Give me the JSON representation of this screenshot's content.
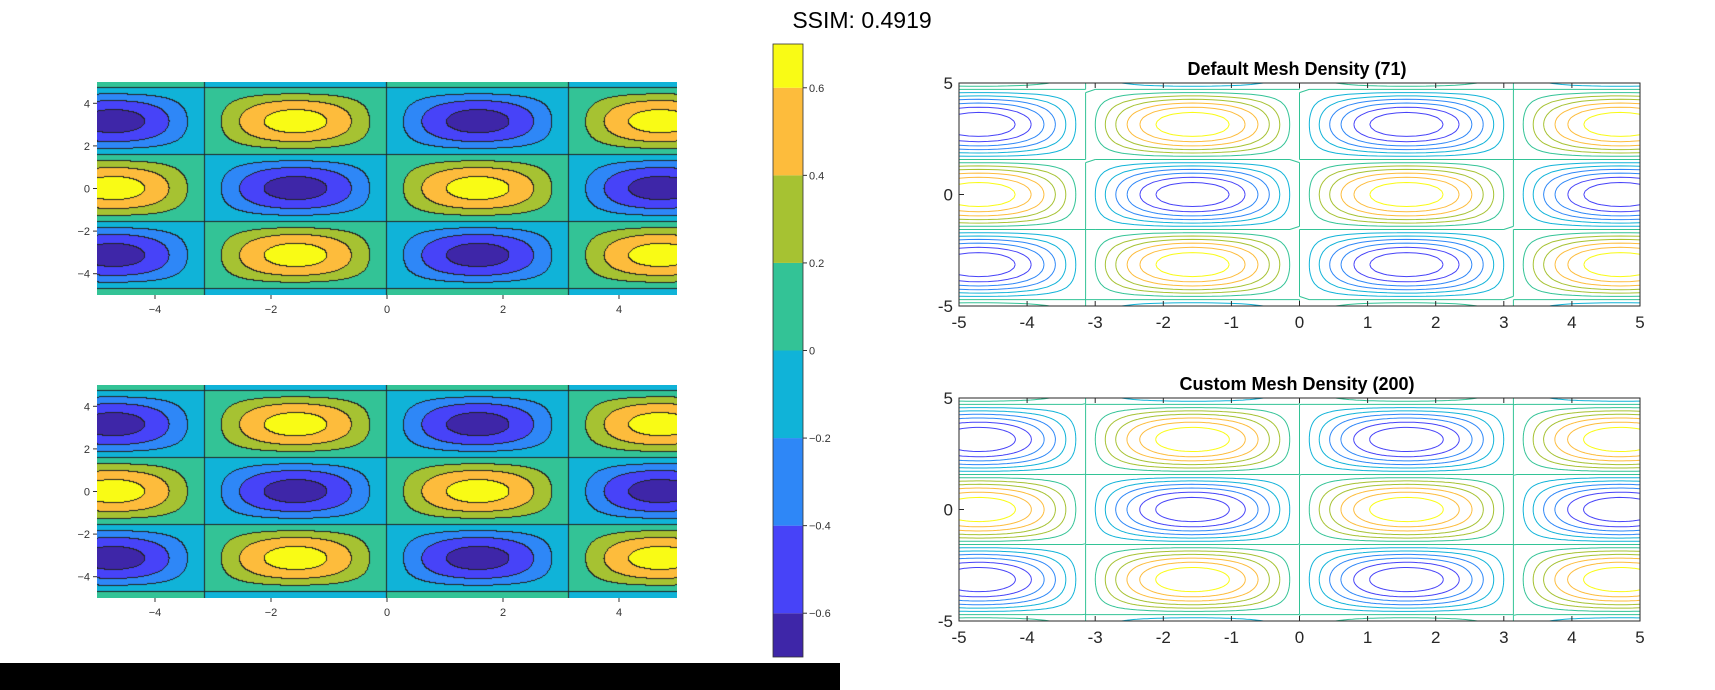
{
  "figure": {
    "suptitle": "SSIM: 0.4919"
  },
  "colormap": {
    "levels": [
      -0.7,
      -0.6,
      -0.4,
      -0.2,
      0.0,
      0.2,
      0.4,
      0.6,
      0.7
    ],
    "colors": [
      "#3e26a8",
      "#4743f8",
      "#2e87f7",
      "#10b3d8",
      "#33c396",
      "#a6c232",
      "#fdbc3c",
      "#f9fb15"
    ],
    "tick_values": [
      0.6,
      0.4,
      0.2,
      0,
      -0.2,
      -0.4,
      -0.6
    ],
    "tick_labels": [
      "0.6",
      "0.4",
      "0.2",
      "0",
      "−0.2",
      "−0.4",
      "−0.6"
    ]
  },
  "chart_data": [
    {
      "type": "contourf",
      "title": "",
      "function": "z = sin(x)·cos(y)·0.7 (approx.)",
      "xlim": [
        -5,
        5
      ],
      "ylim": [
        -5,
        5
      ],
      "xticks": [
        -4,
        -2,
        0,
        2,
        4
      ],
      "xtick_labels": [
        "−4",
        "−2",
        "0",
        "2",
        "4"
      ],
      "yticks": [
        4,
        2,
        0,
        -2,
        -4
      ],
      "ytick_labels": [
        "4",
        "2",
        "0",
        "−2",
        "−4"
      ],
      "levels": [
        -0.6,
        -0.4,
        -0.2,
        0.0,
        0.2,
        0.4,
        0.6
      ]
    },
    {
      "type": "contourf",
      "title": "",
      "xlim": [
        -5,
        5
      ],
      "ylim": [
        -5,
        5
      ],
      "xticks": [
        -4,
        -2,
        0,
        2,
        4
      ],
      "xtick_labels": [
        "−4",
        "−2",
        "0",
        "2",
        "4"
      ],
      "yticks": [
        4,
        2,
        0,
        -2,
        -4
      ],
      "ytick_labels": [
        "4",
        "2",
        "0",
        "−2",
        "−4"
      ],
      "levels": [
        -0.6,
        -0.4,
        -0.2,
        0.0,
        0.2,
        0.4,
        0.6
      ]
    },
    {
      "type": "contour",
      "title": "Default Mesh Density (71)",
      "mesh_points": 71,
      "xlim": [
        -5,
        5
      ],
      "ylim": [
        -5,
        5
      ],
      "xticks": [
        -5,
        -4,
        -3,
        -2,
        -1,
        0,
        1,
        2,
        3,
        4,
        5
      ],
      "xtick_labels": [
        "-5",
        "-4",
        "-3",
        "-2",
        "-1",
        "0",
        "1",
        "2",
        "3",
        "4",
        "5"
      ],
      "yticks": [
        5,
        0,
        -5
      ],
      "ytick_labels": [
        "5",
        "0",
        "-5"
      ]
    },
    {
      "type": "contour",
      "title": "Custom Mesh Density (200)",
      "mesh_points": 200,
      "xlim": [
        -5,
        5
      ],
      "ylim": [
        -5,
        5
      ],
      "xticks": [
        -5,
        -4,
        -3,
        -2,
        -1,
        0,
        1,
        2,
        3,
        4,
        5
      ],
      "xtick_labels": [
        "-5",
        "-4",
        "-3",
        "-2",
        "-1",
        "0",
        "1",
        "2",
        "3",
        "4",
        "5"
      ],
      "yticks": [
        5,
        0,
        -5
      ],
      "ytick_labels": [
        "5",
        "0",
        "-5"
      ]
    }
  ]
}
